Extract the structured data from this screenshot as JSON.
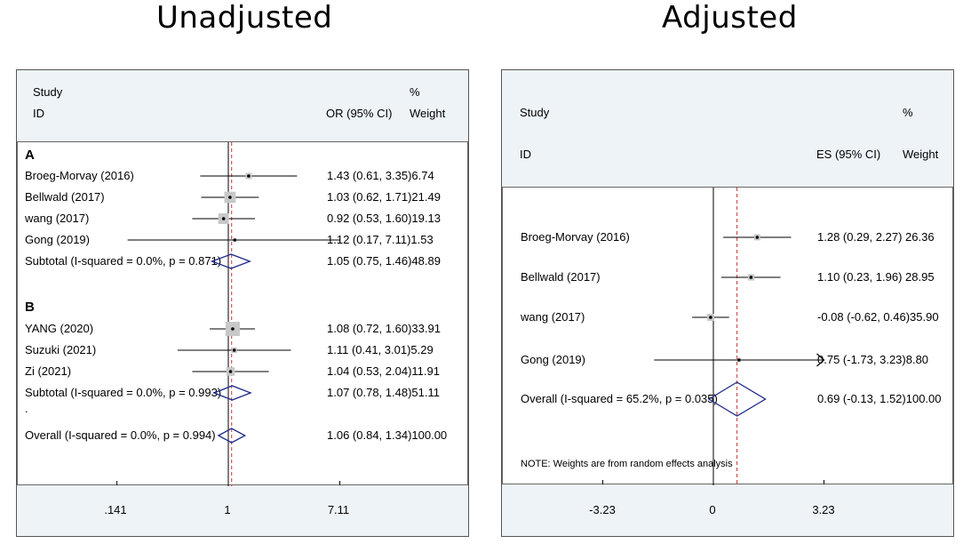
{
  "chart_data": [
    {
      "type": "forest",
      "title": "Unadjusted",
      "header": {
        "study": "Study",
        "id": "ID",
        "estimate": "OR (95% CI)",
        "pct": "%",
        "weight": "Weight"
      },
      "x_ticks": [
        0.141,
        1,
        7.11
      ],
      "x_tick_labels": [
        ".141",
        "1",
        "7.11"
      ],
      "x_scale": "log",
      "null_value": 1,
      "overall_line": 1.06,
      "groups": [
        {
          "label": "A",
          "studies": [
            {
              "name": "Broeg-Morvay (2016)",
              "est": 1.43,
              "lo": 0.61,
              "hi": 3.35,
              "weight": 6.74,
              "text": "1.43 (0.61, 3.35)6.74"
            },
            {
              "name": "Bellwald (2017)",
              "est": 1.03,
              "lo": 0.62,
              "hi": 1.71,
              "weight": 21.49,
              "text": "1.03 (0.62, 1.71)21.49"
            },
            {
              "name": "wang (2017)",
              "est": 0.92,
              "lo": 0.53,
              "hi": 1.6,
              "weight": 19.13,
              "text": "0.92 (0.53, 1.60)19.13"
            },
            {
              "name": "Gong (2019)",
              "est": 1.12,
              "lo": 0.17,
              "hi": 7.11,
              "weight": 1.53,
              "text": "1.12 (0.17, 7.11)1.53"
            }
          ],
          "subtotal": {
            "name": "Subtotal  (I-squared = 0.0%, p = 0.871)",
            "est": 1.05,
            "lo": 0.75,
            "hi": 1.46,
            "weight": 48.89,
            "text": "1.05 (0.75, 1.46)48.89"
          }
        },
        {
          "label": "B",
          "studies": [
            {
              "name": "YANG (2020)",
              "est": 1.08,
              "lo": 0.72,
              "hi": 1.6,
              "weight": 33.91,
              "text": "1.08 (0.72, 1.60)33.91"
            },
            {
              "name": "Suzuki (2021)",
              "est": 1.11,
              "lo": 0.41,
              "hi": 3.01,
              "weight": 5.29,
              "text": "1.11 (0.41, 3.01)5.29"
            },
            {
              "name": "Zi (2021)",
              "est": 1.04,
              "lo": 0.53,
              "hi": 2.04,
              "weight": 11.91,
              "text": "1.04 (0.53, 2.04)11.91"
            }
          ],
          "subtotal": {
            "name": "Subtotal  (I-squared = 0.0%, p = 0.993)",
            "est": 1.07,
            "lo": 0.78,
            "hi": 1.48,
            "weight": 51.11,
            "text": "1.07 (0.78, 1.48)51.11"
          }
        }
      ],
      "separator": ".",
      "overall": {
        "name": "Overall  (I-squared = 0.0%, p = 0.994)",
        "est": 1.06,
        "lo": 0.84,
        "hi": 1.34,
        "weight": 100.0,
        "text": "1.06 (0.84, 1.34)100.00"
      }
    },
    {
      "type": "forest",
      "title": "Adjusted",
      "header": {
        "study": "Study",
        "id": "ID",
        "estimate": "ES (95% CI)",
        "pct": "%",
        "weight": "Weight"
      },
      "x_ticks": [
        -3.23,
        0,
        3.23
      ],
      "x_tick_labels": [
        "-3.23",
        "0",
        "3.23"
      ],
      "x_scale": "linear",
      "null_value": 0,
      "overall_line": 0.69,
      "studies": [
        {
          "name": "Broeg-Morvay (2016)",
          "est": 1.28,
          "lo": 0.29,
          "hi": 2.27,
          "weight": 26.36,
          "text": "1.28 (0.29, 2.27) 26.36"
        },
        {
          "name": "Bellwald (2017)",
          "est": 1.1,
          "lo": 0.23,
          "hi": 1.96,
          "weight": 28.95,
          "text": "1.10 (0.23, 1.96) 28.95"
        },
        {
          "name": "wang (2017)",
          "est": -0.08,
          "lo": -0.62,
          "hi": 0.46,
          "weight": 35.9,
          "text": "-0.08 (-0.62, 0.46)35.90"
        },
        {
          "name": "Gong (2019)",
          "est": 0.75,
          "lo": -1.73,
          "hi": 3.23,
          "weight": 8.8,
          "text": "0.75 (-1.73, 3.23)8.80",
          "arrow_right": true
        }
      ],
      "overall": {
        "name": "Overall  (I-squared = 65.2%, p = 0.035)",
        "est": 0.69,
        "lo": -0.13,
        "hi": 1.52,
        "weight": 100.0,
        "text": "0.69 (-0.13, 1.52)100.00"
      },
      "note": "NOTE: Weights are from random effects analysis"
    }
  ]
}
